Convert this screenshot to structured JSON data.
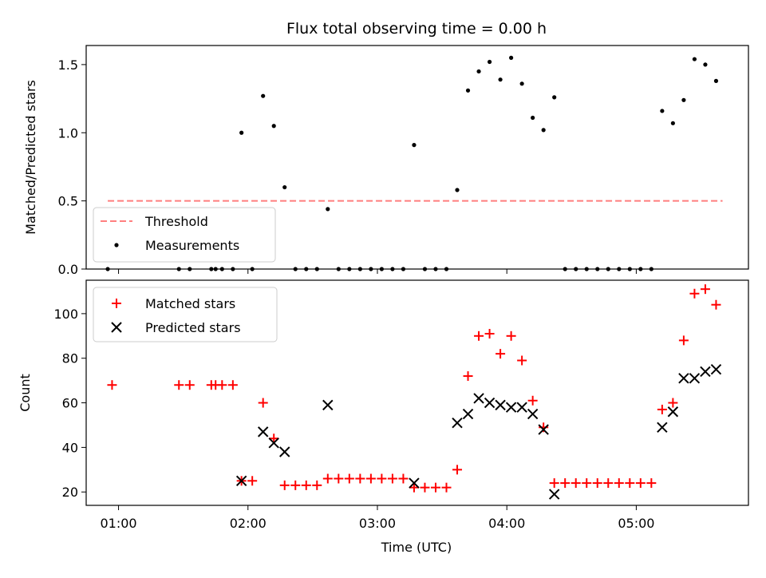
{
  "chart_data": [
    {
      "type": "scatter",
      "title": "Flux total observing time = 0.00 h",
      "ylabel": "Matched/Predicted stars",
      "xlabel": "",
      "xlim": [
        "00:45",
        "05:52"
      ],
      "ylim": [
        0,
        1.64
      ],
      "yticks": [
        0.0,
        0.5,
        1.0,
        1.5
      ],
      "ytick_labels": [
        "0.0",
        "0.5",
        "1.0",
        "1.5"
      ],
      "grid": false,
      "legend": {
        "placement": "lower-left",
        "entries": [
          "Threshold",
          "Measurements"
        ]
      },
      "threshold": {
        "name": "Threshold",
        "value": 0.5,
        "x_start": "00:55",
        "x_end": "05:40",
        "color": "#ff7f7f",
        "style": "dashed"
      },
      "series": [
        {
          "name": "Measurements",
          "color": "#000000",
          "marker": "dot",
          "points": [
            [
              "00:55",
              0
            ],
            [
              "01:28",
              0
            ],
            [
              "01:33",
              0
            ],
            [
              "01:43",
              0
            ],
            [
              "01:45",
              0
            ],
            [
              "01:48",
              0
            ],
            [
              "01:53",
              0
            ],
            [
              "01:57",
              1.0
            ],
            [
              "02:02",
              0
            ],
            [
              "02:07",
              1.27
            ],
            [
              "02:12",
              1.05
            ],
            [
              "02:17",
              0.6
            ],
            [
              "02:22",
              0
            ],
            [
              "02:27",
              0
            ],
            [
              "02:32",
              0
            ],
            [
              "02:37",
              0.44
            ],
            [
              "02:42",
              0
            ],
            [
              "02:47",
              0
            ],
            [
              "02:52",
              0
            ],
            [
              "02:57",
              0
            ],
            [
              "03:02",
              0
            ],
            [
              "03:07",
              0
            ],
            [
              "03:12",
              0
            ],
            [
              "03:17",
              0.91
            ],
            [
              "03:22",
              0
            ],
            [
              "03:27",
              0
            ],
            [
              "03:32",
              0
            ],
            [
              "03:37",
              0.58
            ],
            [
              "03:42",
              1.31
            ],
            [
              "03:47",
              1.45
            ],
            [
              "03:52",
              1.52
            ],
            [
              "03:57",
              1.39
            ],
            [
              "04:02",
              1.55
            ],
            [
              "04:07",
              1.36
            ],
            [
              "04:12",
              1.11
            ],
            [
              "04:17",
              1.02
            ],
            [
              "04:22",
              1.26
            ],
            [
              "04:27",
              0
            ],
            [
              "04:32",
              0
            ],
            [
              "04:37",
              0
            ],
            [
              "04:42",
              0
            ],
            [
              "04:47",
              0
            ],
            [
              "04:52",
              0
            ],
            [
              "04:57",
              0
            ],
            [
              "05:02",
              0
            ],
            [
              "05:07",
              0
            ],
            [
              "05:12",
              1.16
            ],
            [
              "05:17",
              1.07
            ],
            [
              "05:22",
              1.24
            ],
            [
              "05:27",
              1.54
            ],
            [
              "05:32",
              1.5
            ],
            [
              "05:37",
              1.38
            ]
          ]
        }
      ]
    },
    {
      "type": "scatter",
      "title": "",
      "ylabel": "Count",
      "xlabel": "Time (UTC)",
      "xlim": [
        "00:45",
        "05:52"
      ],
      "ylim": [
        14,
        115
      ],
      "yticks": [
        20,
        40,
        60,
        80,
        100
      ],
      "ytick_labels": [
        "20",
        "40",
        "60",
        "80",
        "100"
      ],
      "xticks": [
        "01:00",
        "02:00",
        "03:00",
        "04:00",
        "05:00"
      ],
      "xtick_labels": [
        "01:00",
        "02:00",
        "03:00",
        "04:00",
        "05:00"
      ],
      "grid": false,
      "legend": {
        "placement": "upper-left",
        "entries": [
          "Matched stars",
          "Predicted stars"
        ]
      },
      "series": [
        {
          "name": "Matched stars",
          "color": "#ff0000",
          "marker": "plus",
          "points": [
            [
              "00:57",
              68
            ],
            [
              "01:28",
              68
            ],
            [
              "01:33",
              68
            ],
            [
              "01:43",
              68
            ],
            [
              "01:45",
              68
            ],
            [
              "01:48",
              68
            ],
            [
              "01:53",
              68
            ],
            [
              "01:57",
              25
            ],
            [
              "02:02",
              25
            ],
            [
              "02:07",
              60
            ],
            [
              "02:12",
              44
            ],
            [
              "02:17",
              23
            ],
            [
              "02:22",
              23
            ],
            [
              "02:27",
              23
            ],
            [
              "02:32",
              23
            ],
            [
              "02:37",
              26
            ],
            [
              "02:42",
              26
            ],
            [
              "02:47",
              26
            ],
            [
              "02:52",
              26
            ],
            [
              "02:57",
              26
            ],
            [
              "03:02",
              26
            ],
            [
              "03:07",
              26
            ],
            [
              "03:12",
              26
            ],
            [
              "03:17",
              22
            ],
            [
              "03:22",
              22
            ],
            [
              "03:27",
              22
            ],
            [
              "03:32",
              22
            ],
            [
              "03:37",
              30
            ],
            [
              "03:42",
              72
            ],
            [
              "03:47",
              90
            ],
            [
              "03:52",
              91
            ],
            [
              "03:57",
              82
            ],
            [
              "04:02",
              90
            ],
            [
              "04:07",
              79
            ],
            [
              "04:12",
              61
            ],
            [
              "04:17",
              49
            ],
            [
              "04:22",
              24
            ],
            [
              "04:27",
              24
            ],
            [
              "04:32",
              24
            ],
            [
              "04:37",
              24
            ],
            [
              "04:42",
              24
            ],
            [
              "04:47",
              24
            ],
            [
              "04:52",
              24
            ],
            [
              "04:57",
              24
            ],
            [
              "05:02",
              24
            ],
            [
              "05:07",
              24
            ],
            [
              "05:12",
              57
            ],
            [
              "05:17",
              60
            ],
            [
              "05:22",
              88
            ],
            [
              "05:27",
              109
            ],
            [
              "05:32",
              111
            ],
            [
              "05:37",
              104
            ]
          ]
        },
        {
          "name": "Predicted stars",
          "color": "#000000",
          "marker": "x",
          "points": [
            [
              "01:57",
              25
            ],
            [
              "02:07",
              47
            ],
            [
              "02:12",
              42
            ],
            [
              "02:17",
              38
            ],
            [
              "02:37",
              59
            ],
            [
              "03:17",
              24
            ],
            [
              "03:37",
              51
            ],
            [
              "03:42",
              55
            ],
            [
              "03:47",
              62
            ],
            [
              "03:52",
              60
            ],
            [
              "03:57",
              59
            ],
            [
              "04:02",
              58
            ],
            [
              "04:07",
              58
            ],
            [
              "04:12",
              55
            ],
            [
              "04:17",
              48
            ],
            [
              "04:22",
              19
            ],
            [
              "05:12",
              49
            ],
            [
              "05:17",
              56
            ],
            [
              "05:22",
              71
            ],
            [
              "05:27",
              71
            ],
            [
              "05:32",
              74
            ],
            [
              "05:37",
              75
            ]
          ]
        }
      ]
    }
  ]
}
